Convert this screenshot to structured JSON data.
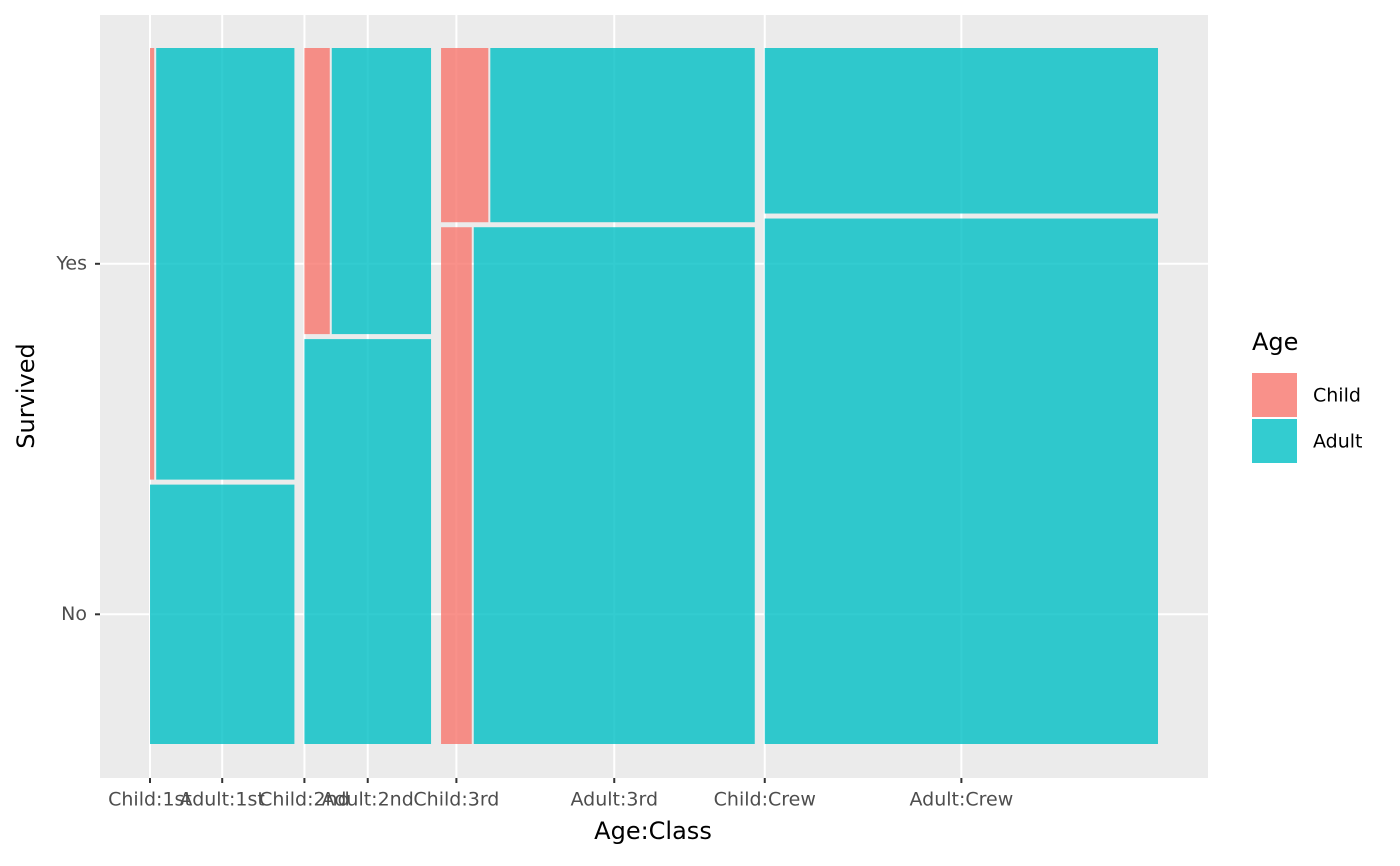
{
  "chart_data": {
    "type": "mosaic",
    "x_label": "Age:Class",
    "y_label": "Survived",
    "legend_title": "Age",
    "categories": [
      "Child:1st",
      "Adult:1st",
      "Child:2nd",
      "Adult:2nd",
      "Child:3rd",
      "Adult:3rd",
      "Child:Crew",
      "Adult:Crew"
    ],
    "series": [
      {
        "name": "No",
        "values": [
          0,
          122,
          0,
          167,
          52,
          476,
          0,
          673
        ]
      },
      {
        "name": "Yes",
        "values": [
          6,
          197,
          24,
          94,
          27,
          151,
          0,
          212
        ]
      }
    ],
    "legend": [
      {
        "name": "Child",
        "color": "#f8766d"
      },
      {
        "name": "Adult",
        "color": "#00bfc4"
      }
    ],
    "grid": true
  }
}
